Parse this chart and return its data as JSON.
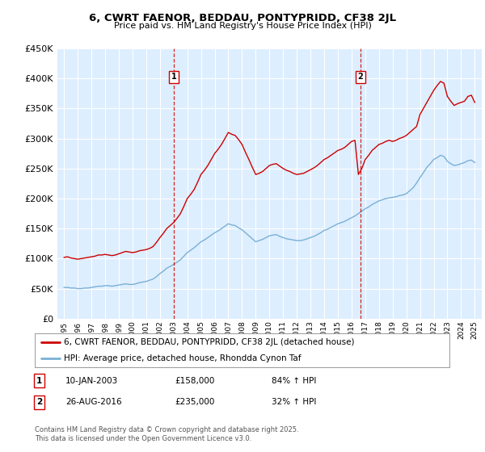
{
  "title": "6, CWRT FAENOR, BEDDAU, PONTYPRIDD, CF38 2JL",
  "subtitle": "Price paid vs. HM Land Registry's House Price Index (HPI)",
  "legend_line1": "6, CWRT FAENOR, BEDDAU, PONTYPRIDD, CF38 2JL (detached house)",
  "legend_line2": "HPI: Average price, detached house, Rhondda Cynon Taf",
  "sale1_label": "1",
  "sale1_date": "10-JAN-2003",
  "sale1_price": "£158,000",
  "sale1_hpi": "84% ↑ HPI",
  "sale1_year": 2003.03,
  "sale1_value": 158000,
  "sale2_label": "2",
  "sale2_date": "26-AUG-2016",
  "sale2_price": "£235,000",
  "sale2_hpi": "32% ↑ HPI",
  "sale2_year": 2016.65,
  "sale2_value": 235000,
  "red_color": "#cc0000",
  "blue_color": "#7ab0d4",
  "background_color": "#ddeeff",
  "grid_color": "#ffffff",
  "ylim": [
    0,
    450000
  ],
  "yticks": [
    0,
    50000,
    100000,
    150000,
    200000,
    250000,
    300000,
    350000,
    400000,
    450000
  ],
  "xlim_start": 1994.5,
  "xlim_end": 2025.5,
  "footer": "Contains HM Land Registry data © Crown copyright and database right 2025.\nThis data is licensed under the Open Government Licence v3.0.",
  "red_hpi_data": {
    "years": [
      1995.0,
      1995.25,
      1995.5,
      1995.75,
      1996.0,
      1996.25,
      1996.5,
      1996.75,
      1997.0,
      1997.25,
      1997.5,
      1997.75,
      1998.0,
      1998.25,
      1998.5,
      1998.75,
      1999.0,
      1999.25,
      1999.5,
      1999.75,
      2000.0,
      2000.25,
      2000.5,
      2000.75,
      2001.0,
      2001.25,
      2001.5,
      2001.75,
      2002.0,
      2002.25,
      2002.5,
      2002.75,
      2003.0,
      2003.25,
      2003.5,
      2003.75,
      2004.0,
      2004.25,
      2004.5,
      2004.75,
      2005.0,
      2005.25,
      2005.5,
      2005.75,
      2006.0,
      2006.25,
      2006.5,
      2006.75,
      2007.0,
      2007.25,
      2007.5,
      2007.75,
      2008.0,
      2008.25,
      2008.5,
      2008.75,
      2009.0,
      2009.25,
      2009.5,
      2009.75,
      2010.0,
      2010.25,
      2010.5,
      2010.75,
      2011.0,
      2011.25,
      2011.5,
      2011.75,
      2012.0,
      2012.25,
      2012.5,
      2012.75,
      2013.0,
      2013.25,
      2013.5,
      2013.75,
      2014.0,
      2014.25,
      2014.5,
      2014.75,
      2015.0,
      2015.25,
      2015.5,
      2015.75,
      2016.0,
      2016.25,
      2016.5,
      2016.75,
      2017.0,
      2017.25,
      2017.5,
      2017.75,
      2018.0,
      2018.25,
      2018.5,
      2018.75,
      2019.0,
      2019.25,
      2019.5,
      2019.75,
      2020.0,
      2020.25,
      2020.5,
      2020.75,
      2021.0,
      2021.25,
      2021.5,
      2021.75,
      2022.0,
      2022.25,
      2022.5,
      2022.75,
      2023.0,
      2023.25,
      2023.5,
      2023.75,
      2024.0,
      2024.25,
      2024.5,
      2024.75,
      2025.0
    ],
    "values": [
      102000,
      103000,
      101000,
      100000,
      99000,
      100000,
      101000,
      102000,
      103000,
      104000,
      106000,
      106000,
      107000,
      106000,
      105000,
      106000,
      108000,
      110000,
      112000,
      111000,
      110000,
      111000,
      113000,
      114000,
      115000,
      117000,
      120000,
      127000,
      135000,
      142000,
      150000,
      155000,
      160000,
      167000,
      175000,
      187000,
      200000,
      207000,
      215000,
      227000,
      240000,
      247000,
      255000,
      265000,
      275000,
      282000,
      290000,
      300000,
      310000,
      307000,
      305000,
      298000,
      290000,
      277000,
      265000,
      252000,
      240000,
      242000,
      245000,
      250000,
      255000,
      257000,
      258000,
      254000,
      250000,
      247000,
      245000,
      242000,
      240000,
      241000,
      242000,
      245000,
      248000,
      251000,
      255000,
      260000,
      265000,
      268000,
      272000,
      276000,
      280000,
      282000,
      285000,
      290000,
      295000,
      297000,
      240000,
      250000,
      265000,
      272000,
      280000,
      285000,
      290000,
      292000,
      295000,
      297000,
      295000,
      297000,
      300000,
      302000,
      305000,
      310000,
      315000,
      320000,
      340000,
      350000,
      360000,
      370000,
      380000,
      388000,
      395000,
      392000,
      370000,
      362000,
      355000,
      358000,
      360000,
      362000,
      370000,
      372000,
      360000
    ]
  },
  "blue_hpi_data": {
    "years": [
      1995.0,
      1995.25,
      1995.5,
      1995.75,
      1996.0,
      1996.25,
      1996.5,
      1996.75,
      1997.0,
      1997.25,
      1997.5,
      1997.75,
      1998.0,
      1998.25,
      1998.5,
      1998.75,
      1999.0,
      1999.25,
      1999.5,
      1999.75,
      2000.0,
      2000.25,
      2000.5,
      2000.75,
      2001.0,
      2001.25,
      2001.5,
      2001.75,
      2002.0,
      2002.25,
      2002.5,
      2002.75,
      2003.0,
      2003.25,
      2003.5,
      2003.75,
      2004.0,
      2004.25,
      2004.5,
      2004.75,
      2005.0,
      2005.25,
      2005.5,
      2005.75,
      2006.0,
      2006.25,
      2006.5,
      2006.75,
      2007.0,
      2007.25,
      2007.5,
      2007.75,
      2008.0,
      2008.25,
      2008.5,
      2008.75,
      2009.0,
      2009.25,
      2009.5,
      2009.75,
      2010.0,
      2010.25,
      2010.5,
      2010.75,
      2011.0,
      2011.25,
      2011.5,
      2011.75,
      2012.0,
      2012.25,
      2012.5,
      2012.75,
      2013.0,
      2013.25,
      2013.5,
      2013.75,
      2014.0,
      2014.25,
      2014.5,
      2014.75,
      2015.0,
      2015.25,
      2015.5,
      2015.75,
      2016.0,
      2016.25,
      2016.5,
      2016.75,
      2017.0,
      2017.25,
      2017.5,
      2017.75,
      2018.0,
      2018.25,
      2018.5,
      2018.75,
      2019.0,
      2019.25,
      2019.5,
      2019.75,
      2020.0,
      2020.25,
      2020.5,
      2020.75,
      2021.0,
      2021.25,
      2021.5,
      2021.75,
      2022.0,
      2022.25,
      2022.5,
      2022.75,
      2023.0,
      2023.25,
      2023.5,
      2023.75,
      2024.0,
      2024.25,
      2024.5,
      2024.75,
      2025.0
    ],
    "values": [
      52000,
      52000,
      51000,
      51000,
      50000,
      50000,
      51000,
      51000,
      52000,
      53000,
      54000,
      54000,
      55000,
      55000,
      54000,
      55000,
      56000,
      57000,
      58000,
      57000,
      57000,
      58000,
      60000,
      61000,
      62000,
      64000,
      66000,
      70000,
      75000,
      79000,
      84000,
      87000,
      90000,
      94000,
      98000,
      104000,
      110000,
      114000,
      118000,
      123000,
      128000,
      131000,
      135000,
      139000,
      143000,
      146000,
      150000,
      154000,
      158000,
      156000,
      155000,
      151000,
      148000,
      143000,
      138000,
      133000,
      128000,
      130000,
      132000,
      135000,
      138000,
      139000,
      140000,
      137000,
      135000,
      133000,
      132000,
      131000,
      130000,
      130000,
      131000,
      133000,
      135000,
      137000,
      140000,
      143000,
      147000,
      149000,
      152000,
      155000,
      158000,
      160000,
      162000,
      165000,
      168000,
      171000,
      175000,
      179000,
      183000,
      186000,
      190000,
      193000,
      196000,
      198000,
      200000,
      201000,
      202000,
      203000,
      205000,
      206000,
      208000,
      213000,
      218000,
      226000,
      235000,
      243000,
      252000,
      258000,
      265000,
      268000,
      272000,
      270000,
      262000,
      258000,
      255000,
      256000,
      258000,
      260000,
      263000,
      264000,
      260000
    ]
  }
}
